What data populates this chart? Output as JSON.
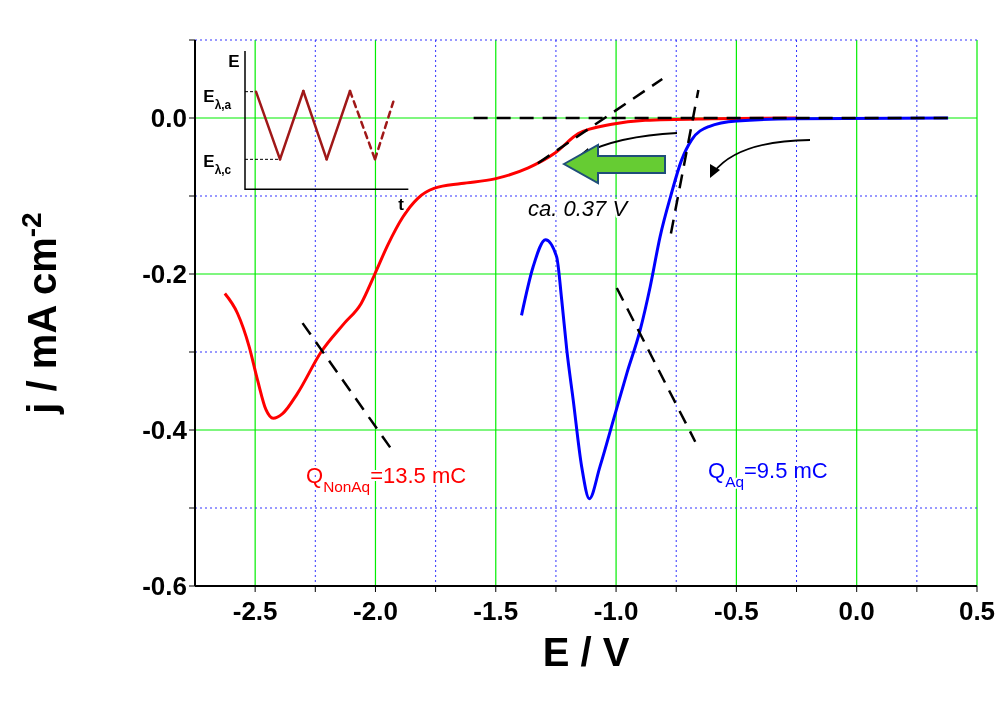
{
  "chart_data": {
    "type": "line",
    "xlabel": "E / V",
    "ylabel": "j / mA cm$^{-2}$",
    "xlim": [
      -2.75,
      0.5
    ],
    "ylim": [
      -0.6,
      0.1
    ],
    "xticks": [
      {
        "value": -2.5,
        "label": "-2.5"
      },
      {
        "value": -2.25,
        "label": null
      },
      {
        "value": -2,
        "label": "-2.0"
      },
      {
        "value": -1.75,
        "label": null
      },
      {
        "value": -1.5,
        "label": "-1.5"
      },
      {
        "value": -1.25,
        "label": null
      },
      {
        "value": -1,
        "label": "-1.0"
      },
      {
        "value": -0.75,
        "label": null
      },
      {
        "value": -0.5,
        "label": "-0.5"
      },
      {
        "value": -0.25,
        "label": null
      },
      {
        "value": 0,
        "label": "0.0"
      },
      {
        "value": 0.25,
        "label": null
      },
      {
        "value": 0.5,
        "label": "0.5"
      }
    ],
    "yticks": [
      {
        "value": -0.6,
        "label": "-0.6"
      },
      {
        "value": -0.5,
        "label": null
      },
      {
        "value": -0.4,
        "label": "-0.4"
      },
      {
        "value": -0.3,
        "label": null
      },
      {
        "value": -0.2,
        "label": "-0.2"
      },
      {
        "value": -0.1,
        "label": null
      },
      {
        "value": 0,
        "label": "0.0"
      },
      {
        "value": 0.1,
        "label": null
      }
    ],
    "grid": true,
    "marker": "none",
    "series": [
      {
        "color": "#ff0000",
        "line_style": "solid",
        "x": [
          -2.626,
          -2.574,
          -2.525,
          -2.49,
          -2.455,
          -2.425,
          -2.386,
          -2.324,
          -2.226,
          -2.129,
          -2.06,
          -2.004,
          -1.949,
          -1.886,
          -1.824,
          -1.754,
          -1.643,
          -1.504,
          -1.365,
          -1.254,
          -1.157,
          -1.018,
          -0.879,
          -0.6,
          -0.25
        ],
        "values": [
          -0.225,
          -0.25,
          -0.293,
          -0.336,
          -0.374,
          -0.385,
          -0.379,
          -0.353,
          -0.3,
          -0.263,
          -0.238,
          -0.201,
          -0.163,
          -0.127,
          -0.103,
          -0.09,
          -0.084,
          -0.078,
          -0.064,
          -0.045,
          -0.02,
          -0.008,
          -0.003,
          -0.001,
          0
        ]
      },
      {
        "color": "#0000ff",
        "line_style": "solid",
        "x": [
          -1.393,
          -1.345,
          -1.293,
          -1.247,
          -1.226,
          -1.205,
          -1.178,
          -1.143,
          -1.111,
          -1.067,
          -1.011,
          -0.955,
          -0.9,
          -0.858,
          -0.817,
          -0.772,
          -0.729,
          -0.686,
          -0.614,
          -0.499,
          -0.255,
          0.38
        ],
        "values": [
          -0.253,
          -0.191,
          -0.156,
          -0.178,
          -0.233,
          -0.297,
          -0.362,
          -0.447,
          -0.488,
          -0.447,
          -0.387,
          -0.327,
          -0.272,
          -0.216,
          -0.152,
          -0.099,
          -0.055,
          -0.028,
          -0.011,
          -0.004,
          -0.001,
          0
        ]
      },
      {
        "color": "#000000",
        "line_style": "dashed",
        "x": [
          -1.592,
          0.38
        ],
        "values": [
          0,
          0
        ]
      },
      {
        "color": "#000000",
        "line_style": "dashed",
        "x": [
          -1.325,
          -0.808
        ],
        "values": [
          -0.058,
          0.05
        ]
      },
      {
        "color": "#000000",
        "line_style": "dashed",
        "x": [
          -0.772,
          -0.658
        ],
        "values": [
          -0.148,
          0.036
        ]
      },
      {
        "color": "#000000",
        "line_style": "dashed",
        "x": [
          -2.303,
          -1.935
        ],
        "values": [
          -0.263,
          -0.424
        ]
      },
      {
        "color": "#000000",
        "line_style": "dashed",
        "x": [
          -0.997,
          -0.671
        ],
        "values": [
          -0.218,
          -0.415
        ]
      }
    ],
    "annotations": [
      "Q$_{NonAq}$=13.5 mC",
      "Q$_{Aq}$=9.5 mC",
      "ca. 0.37 V",
      "E",
      "E$_{λ,a}$",
      "E$_{λ,c}$",
      "t"
    ]
  }
}
